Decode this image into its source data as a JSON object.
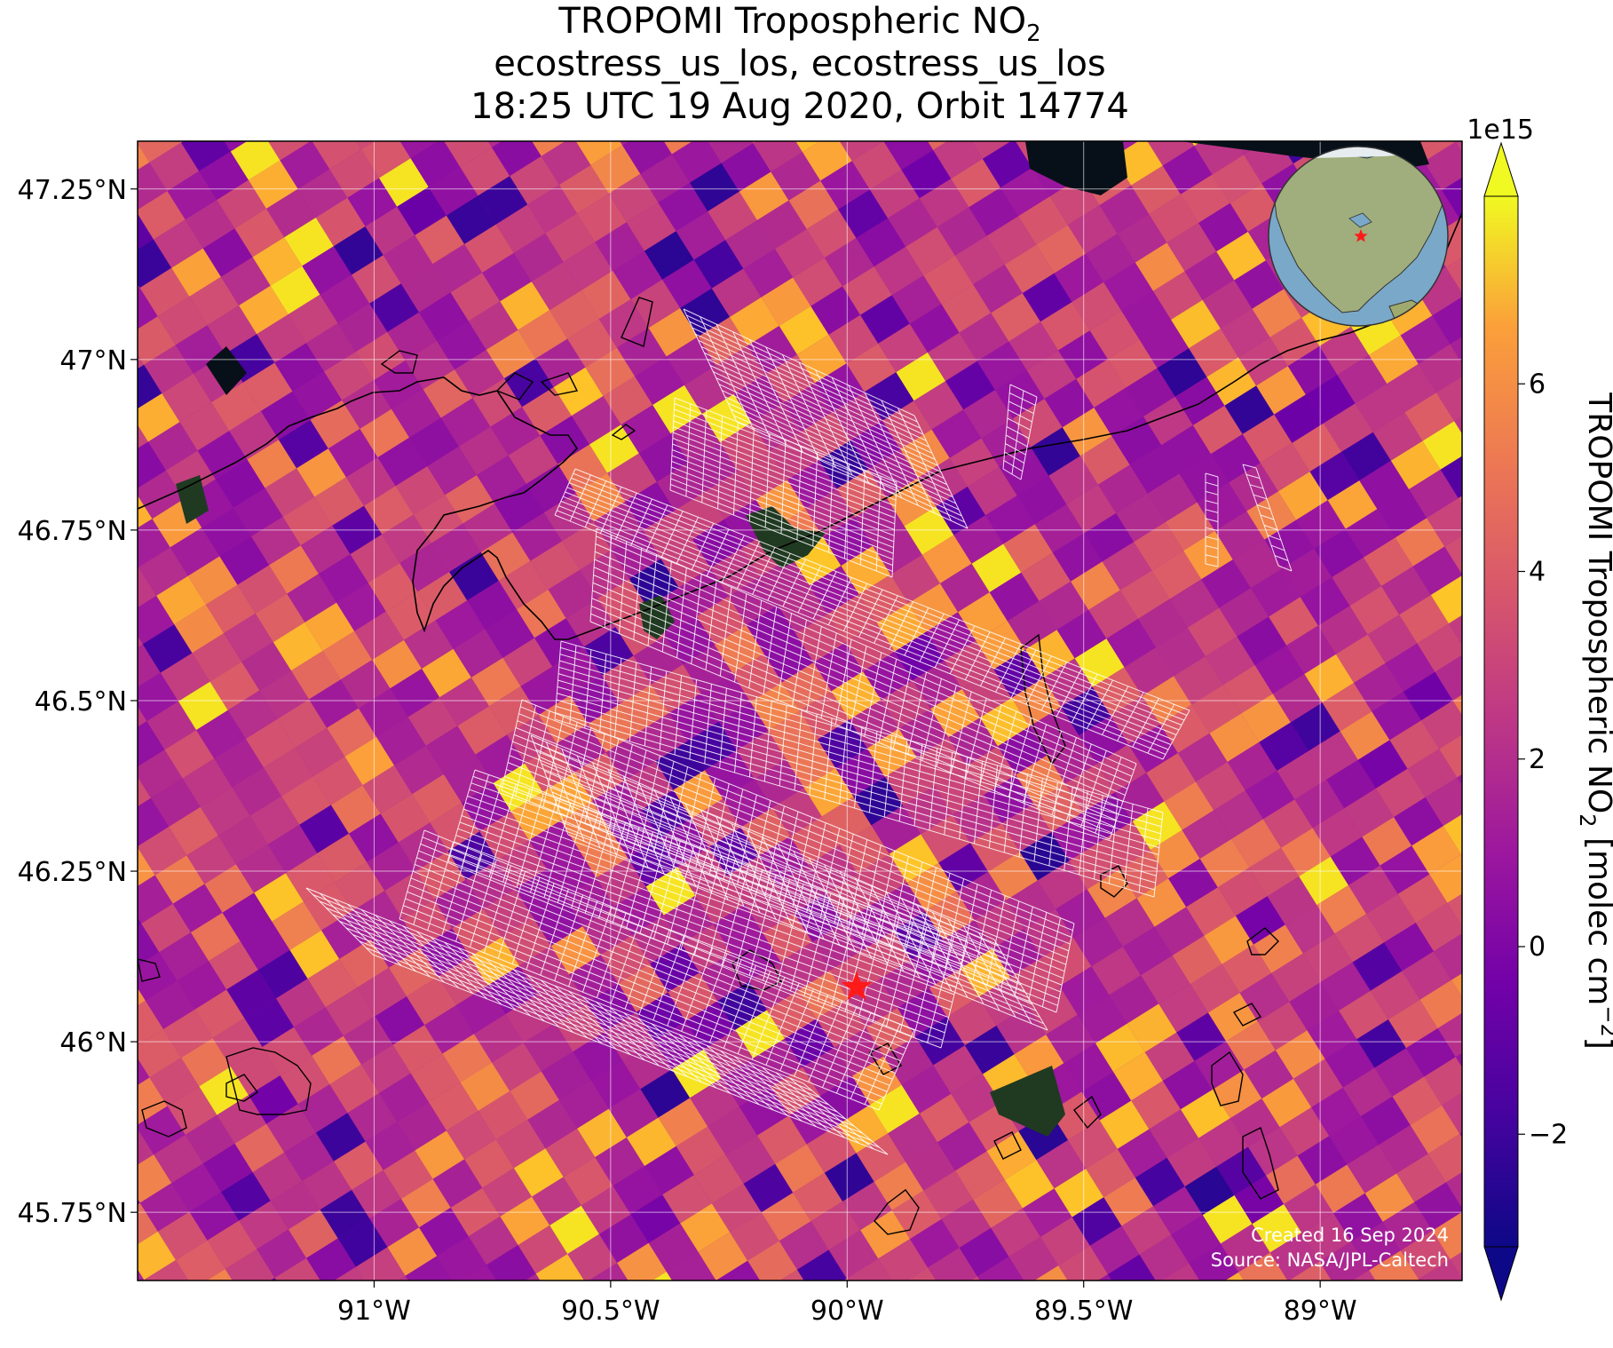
{
  "title": {
    "line1_main": "TROPOMI Tropospheric NO",
    "line1_sub": "2",
    "line2": "ecostress_us_los, ecostress_us_los",
    "line3": "18:25 UTC 19 Aug 2020, Orbit 14774"
  },
  "map": {
    "lon_range": [
      -91.5,
      -88.7
    ],
    "lat_range": [
      45.65,
      47.32
    ],
    "lon_ticks": [
      {
        "value": -91.0,
        "label": "91°W"
      },
      {
        "value": -90.5,
        "label": "90.5°W"
      },
      {
        "value": -90.0,
        "label": "90°W"
      },
      {
        "value": -89.5,
        "label": "89.5°W"
      },
      {
        "value": -89.0,
        "label": "89°W"
      }
    ],
    "lat_ticks": [
      {
        "value": 47.25,
        "label": "47.25°N"
      },
      {
        "value": 47.0,
        "label": "47°N"
      },
      {
        "value": 46.75,
        "label": "46.75°N"
      },
      {
        "value": 46.5,
        "label": "46.5°N"
      },
      {
        "value": 46.25,
        "label": "46.25°N"
      },
      {
        "value": 46.0,
        "label": "46°N"
      },
      {
        "value": 45.75,
        "label": "45.75°N"
      }
    ],
    "gridlines": true,
    "target_marker": {
      "lon": -89.98,
      "lat": 46.08,
      "color": "#ff1a1a"
    },
    "pixel_grid_color": "#ffffff"
  },
  "colorbar": {
    "label_main": "TROPOMI Tropospheric NO",
    "label_sub": "2",
    "label_unit": " [molec cm",
    "label_exp": "−2",
    "label_close": "]",
    "scale_label": "1e15",
    "min": -3.2,
    "max": 8.0,
    "ticks": [
      {
        "value": -2,
        "label": "−2"
      },
      {
        "value": 0,
        "label": "0"
      },
      {
        "value": 2,
        "label": "2"
      },
      {
        "value": 4,
        "label": "4"
      },
      {
        "value": 6,
        "label": "6"
      }
    ],
    "colormap": "plasma",
    "extend": "both"
  },
  "credits": {
    "line1": "Created 16 Sep 2024",
    "line2": "Source: NASA/JPL-Caltech"
  },
  "inset": {
    "marker_color": "#ff1a1a",
    "ocean_color": "#7aa8c8",
    "land_color": "#9fae7c"
  }
}
